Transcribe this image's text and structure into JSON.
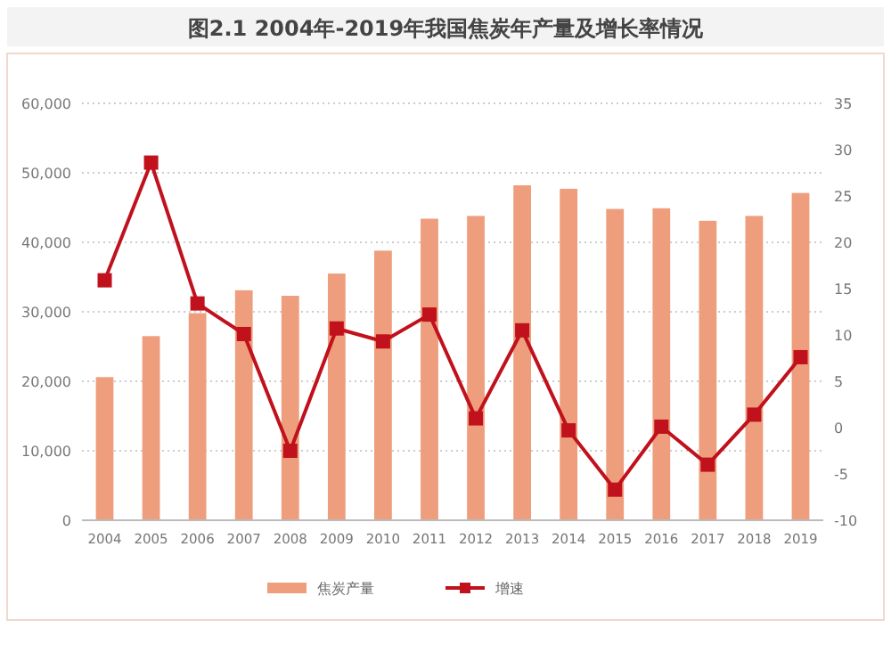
{
  "chart_data": {
    "type": "bar",
    "title": "图2.1 2004年-2019年我国焦炭年产量及增长率情况",
    "categories": [
      "2004",
      "2005",
      "2006",
      "2007",
      "2008",
      "2009",
      "2010",
      "2011",
      "2012",
      "2013",
      "2014",
      "2015",
      "2016",
      "2017",
      "2018",
      "2019"
    ],
    "series": [
      {
        "name": "焦炭产量",
        "color": "#ee9e7c",
        "values": [
          20600,
          26500,
          29800,
          33100,
          32300,
          35500,
          38800,
          43400,
          43800,
          48200,
          47700,
          44800,
          44900,
          43100,
          43800,
          47100
        ]
      },
      {
        "name": "增速",
        "type": "line",
        "axis": "y2",
        "color": "#c0111c",
        "marker": "square",
        "values": [
          15.9,
          28.6,
          13.4,
          10.1,
          -2.5,
          10.7,
          9.3,
          12.2,
          1.0,
          10.5,
          -0.3,
          -6.7,
          0.1,
          -4.0,
          1.4,
          7.6
        ]
      }
    ],
    "ylim": [
      0,
      60000
    ],
    "yticks": [
      {
        "value": 0,
        "label": "0"
      },
      {
        "value": 10000,
        "label": "10,000"
      },
      {
        "value": 20000,
        "label": "20,000"
      },
      {
        "value": 30000,
        "label": "30,000"
      },
      {
        "value": 40000,
        "label": "40,000"
      },
      {
        "value": 50000,
        "label": "50,000"
      },
      {
        "value": 60000,
        "label": "60,000"
      }
    ],
    "y2lim": [
      -10,
      35
    ],
    "y2ticks": [
      -10,
      -5,
      0,
      5,
      10,
      15,
      20,
      25,
      30,
      35
    ],
    "grid": "y",
    "legend": "bottom"
  }
}
